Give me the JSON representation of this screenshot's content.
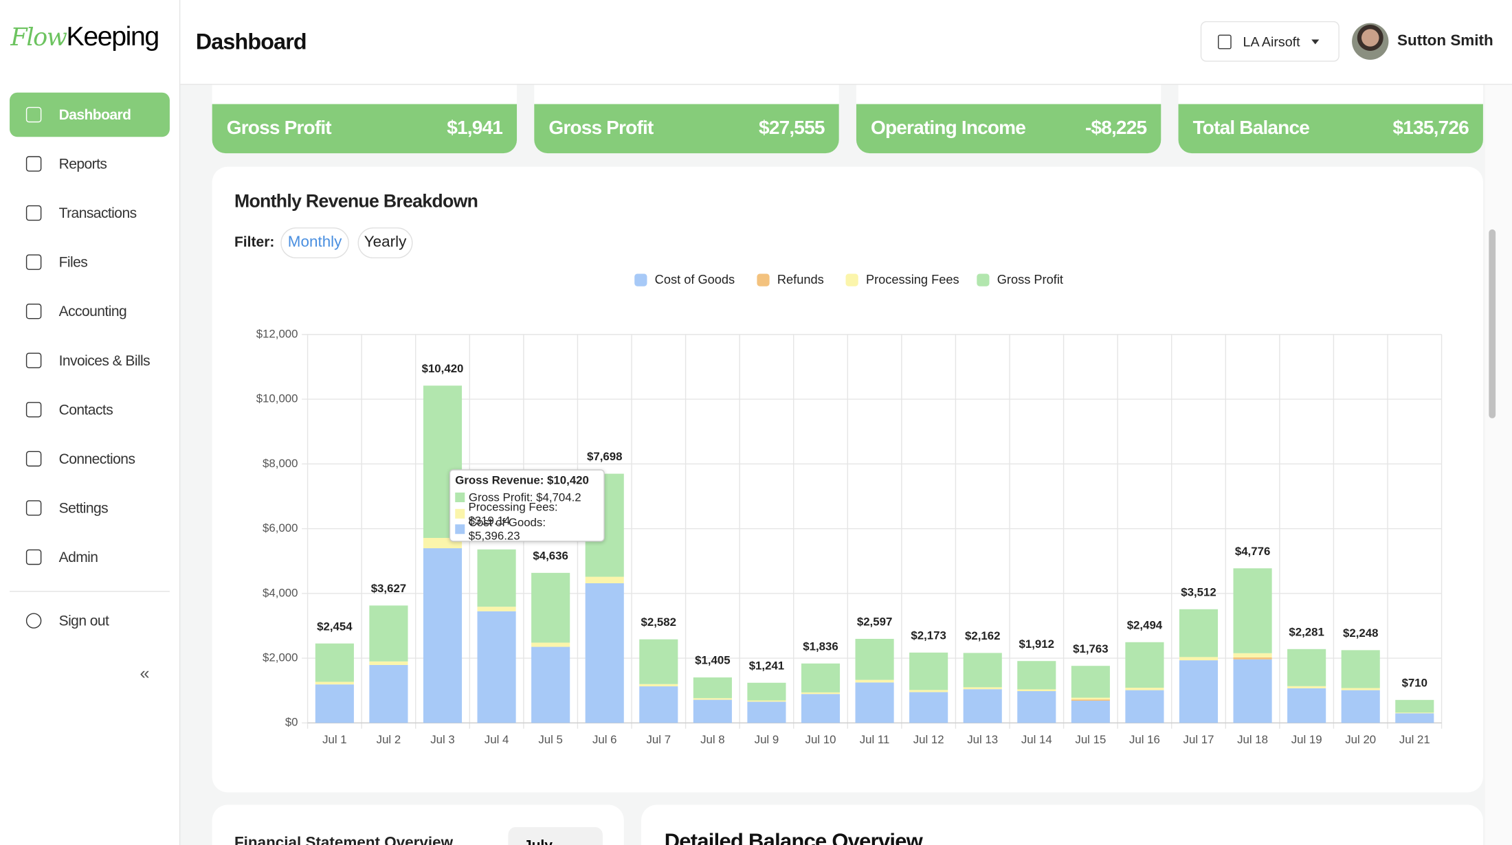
{
  "logo": {
    "first": "Flow",
    "second": "Keeping"
  },
  "sidebar": {
    "items": [
      "Dashboard",
      "Reports",
      "Transactions",
      "Files",
      "Accounting",
      "Invoices & Bills",
      "Contacts",
      "Connections",
      "Settings",
      "Admin"
    ],
    "sign_out": "Sign out",
    "collapse": "«"
  },
  "header": {
    "title": "Dashboard",
    "company": "LA Airsoft",
    "user": "Sutton Smith"
  },
  "cards": [
    {
      "label": "Gross Profit",
      "value": "$1,941"
    },
    {
      "label": "Gross Profit",
      "value": "$27,555"
    },
    {
      "label": "Operating Income",
      "value": "-$8,225"
    },
    {
      "label": "Total Balance",
      "value": "$135,726"
    }
  ],
  "filter": {
    "label": "Filter:",
    "options": [
      "Monthly",
      "Yearly"
    ]
  },
  "chart_data": {
    "type": "bar",
    "stacked": true,
    "title": "Monthly Revenue Breakdown",
    "categories": [
      "Jul 1",
      "Jul 2",
      "Jul 3",
      "Jul 4",
      "Jul 5",
      "Jul 6",
      "Jul 7",
      "Jul 8",
      "Jul 9",
      "Jul 10",
      "Jul 11",
      "Jul 12",
      "Jul 13",
      "Jul 14",
      "Jul 15",
      "Jul 16",
      "Jul 17",
      "Jul 18",
      "Jul 19",
      "Jul 20",
      "Jul 21"
    ],
    "series": [
      {
        "name": "Cost of Goods",
        "color": "#a7c9f7",
        "values": [
          1190,
          1790,
          5396.23,
          3450,
          2350,
          4315,
          1130,
          715,
          655,
          893,
          1250,
          952,
          1042,
          982,
          685,
          1012,
          1935,
          1964,
          1071,
          1012,
          298
        ]
      },
      {
        "name": "Refunds",
        "color": "#f3c27e",
        "values": [
          0,
          0,
          0,
          0,
          0,
          0,
          0,
          0,
          0,
          0,
          0,
          0,
          0,
          0,
          40,
          0,
          0,
          60,
          0,
          0,
          0
        ]
      },
      {
        "name": "Processing Fees",
        "color": "#fbf5ab",
        "values": [
          80,
          110,
          319.14,
          140,
          130,
          200,
          70,
          50,
          40,
          50,
          80,
          65,
          60,
          55,
          55,
          75,
          100,
          130,
          65,
          65,
          20
        ]
      },
      {
        "name": "Gross Profit",
        "color": "#b2e6ae",
        "values": [
          1184,
          1727,
          4704.2,
          1770,
          2156,
          3183,
          1382,
          640,
          546,
          893,
          1267,
          1156,
          1060,
          875,
          983,
          1407,
          1477,
          2622,
          1145,
          1171,
          392
        ]
      }
    ],
    "totals": [
      2454,
      3627,
      10420,
      null,
      4636,
      7698,
      2582,
      1405,
      1241,
      1836,
      2597,
      2173,
      2162,
      1912,
      1763,
      2494,
      3512,
      4776,
      2281,
      2248,
      710
    ],
    "total_labels": [
      "$2,454",
      "$3,627",
      "$10,420",
      null,
      "$4,636",
      "$7,698",
      "$2,582",
      "$1,405",
      "$1,241",
      "$1,836",
      "$2,597",
      "$2,173",
      "$2,162",
      "$1,912",
      "$1,763",
      "$2,494",
      "$3,512",
      "$4,776",
      "$2,281",
      "$2,248",
      "$710"
    ],
    "ylim": [
      0,
      12000
    ],
    "yticks": [
      {
        "value": 0,
        "label": "$0"
      },
      {
        "value": 2000,
        "label": "$2,000"
      },
      {
        "value": 4000,
        "label": "$4,000"
      },
      {
        "value": 6000,
        "label": "$6,000"
      },
      {
        "value": 8000,
        "label": "$8,000"
      },
      {
        "value": 10000,
        "label": "$10,000"
      },
      {
        "value": 12000,
        "label": "$12,000"
      }
    ],
    "grid": true,
    "tooltip": {
      "title": "Gross Revenue: $10,420",
      "lines": [
        "Gross Profit: $4,704.2",
        "Processing Fees: $319.14",
        "Cost of Goods: $5,396.23"
      ]
    }
  },
  "lower": {
    "left_title": "Financial Statement Overview",
    "left_select": "July",
    "right_title": "Detailed Balance Overview"
  }
}
